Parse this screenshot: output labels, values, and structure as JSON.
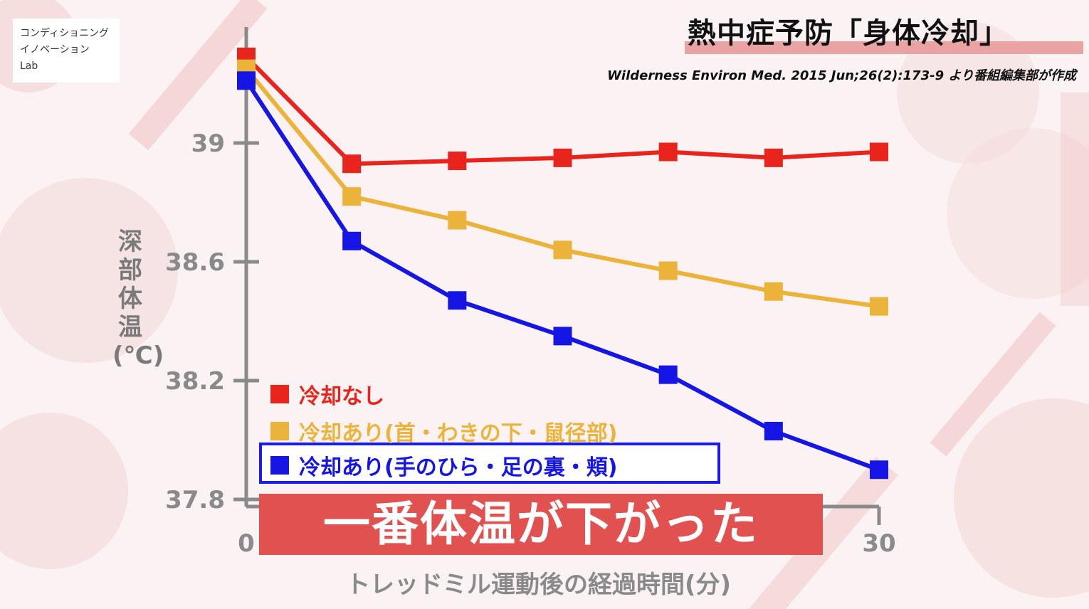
{
  "brand": {
    "line1": "コンディショニング",
    "line2": "イノベーション",
    "line3": "Lab"
  },
  "title": "熱中症予防「身体冷却」",
  "source": "Wilderness Environ Med. 2015 Jun;26(2):173-9 より番組編集部が作成",
  "banner": "一番体温が下がった",
  "colors": {
    "red": "#e8241d",
    "yellow": "#ecb33a",
    "blue": "#1515e6",
    "axis": "#8a8a8a",
    "banner": "#e0514f"
  },
  "chart_data": {
    "type": "line",
    "title": "",
    "xlabel": "トレッドミル運動後の経過時間(分)",
    "ylabel": "深部体温(℃)",
    "x": [
      0,
      5,
      10,
      15,
      20,
      25,
      30
    ],
    "xticks": [
      "0",
      "30"
    ],
    "yticks": [
      "37.8",
      "38.2",
      "38.6",
      "39"
    ],
    "ylim": [
      37.8,
      39.4
    ],
    "xlim": [
      0,
      30
    ],
    "grid": false,
    "legend_position": "bottom-left",
    "series": [
      {
        "name": "冷却なし",
        "color": "#e8241d",
        "values": [
          39.29,
          38.93,
          38.94,
          38.95,
          38.97,
          38.95,
          38.97
        ]
      },
      {
        "name": "冷却あり(首・わきの下・鼠径部)",
        "color": "#ecb33a",
        "values": [
          39.25,
          38.82,
          38.74,
          38.64,
          38.57,
          38.5,
          38.45
        ]
      },
      {
        "name": "冷却あり(手のひら・足の裏・頬)",
        "color": "#1515e6",
        "values": [
          39.21,
          38.67,
          38.47,
          38.35,
          38.22,
          38.03,
          37.9
        ]
      }
    ]
  }
}
